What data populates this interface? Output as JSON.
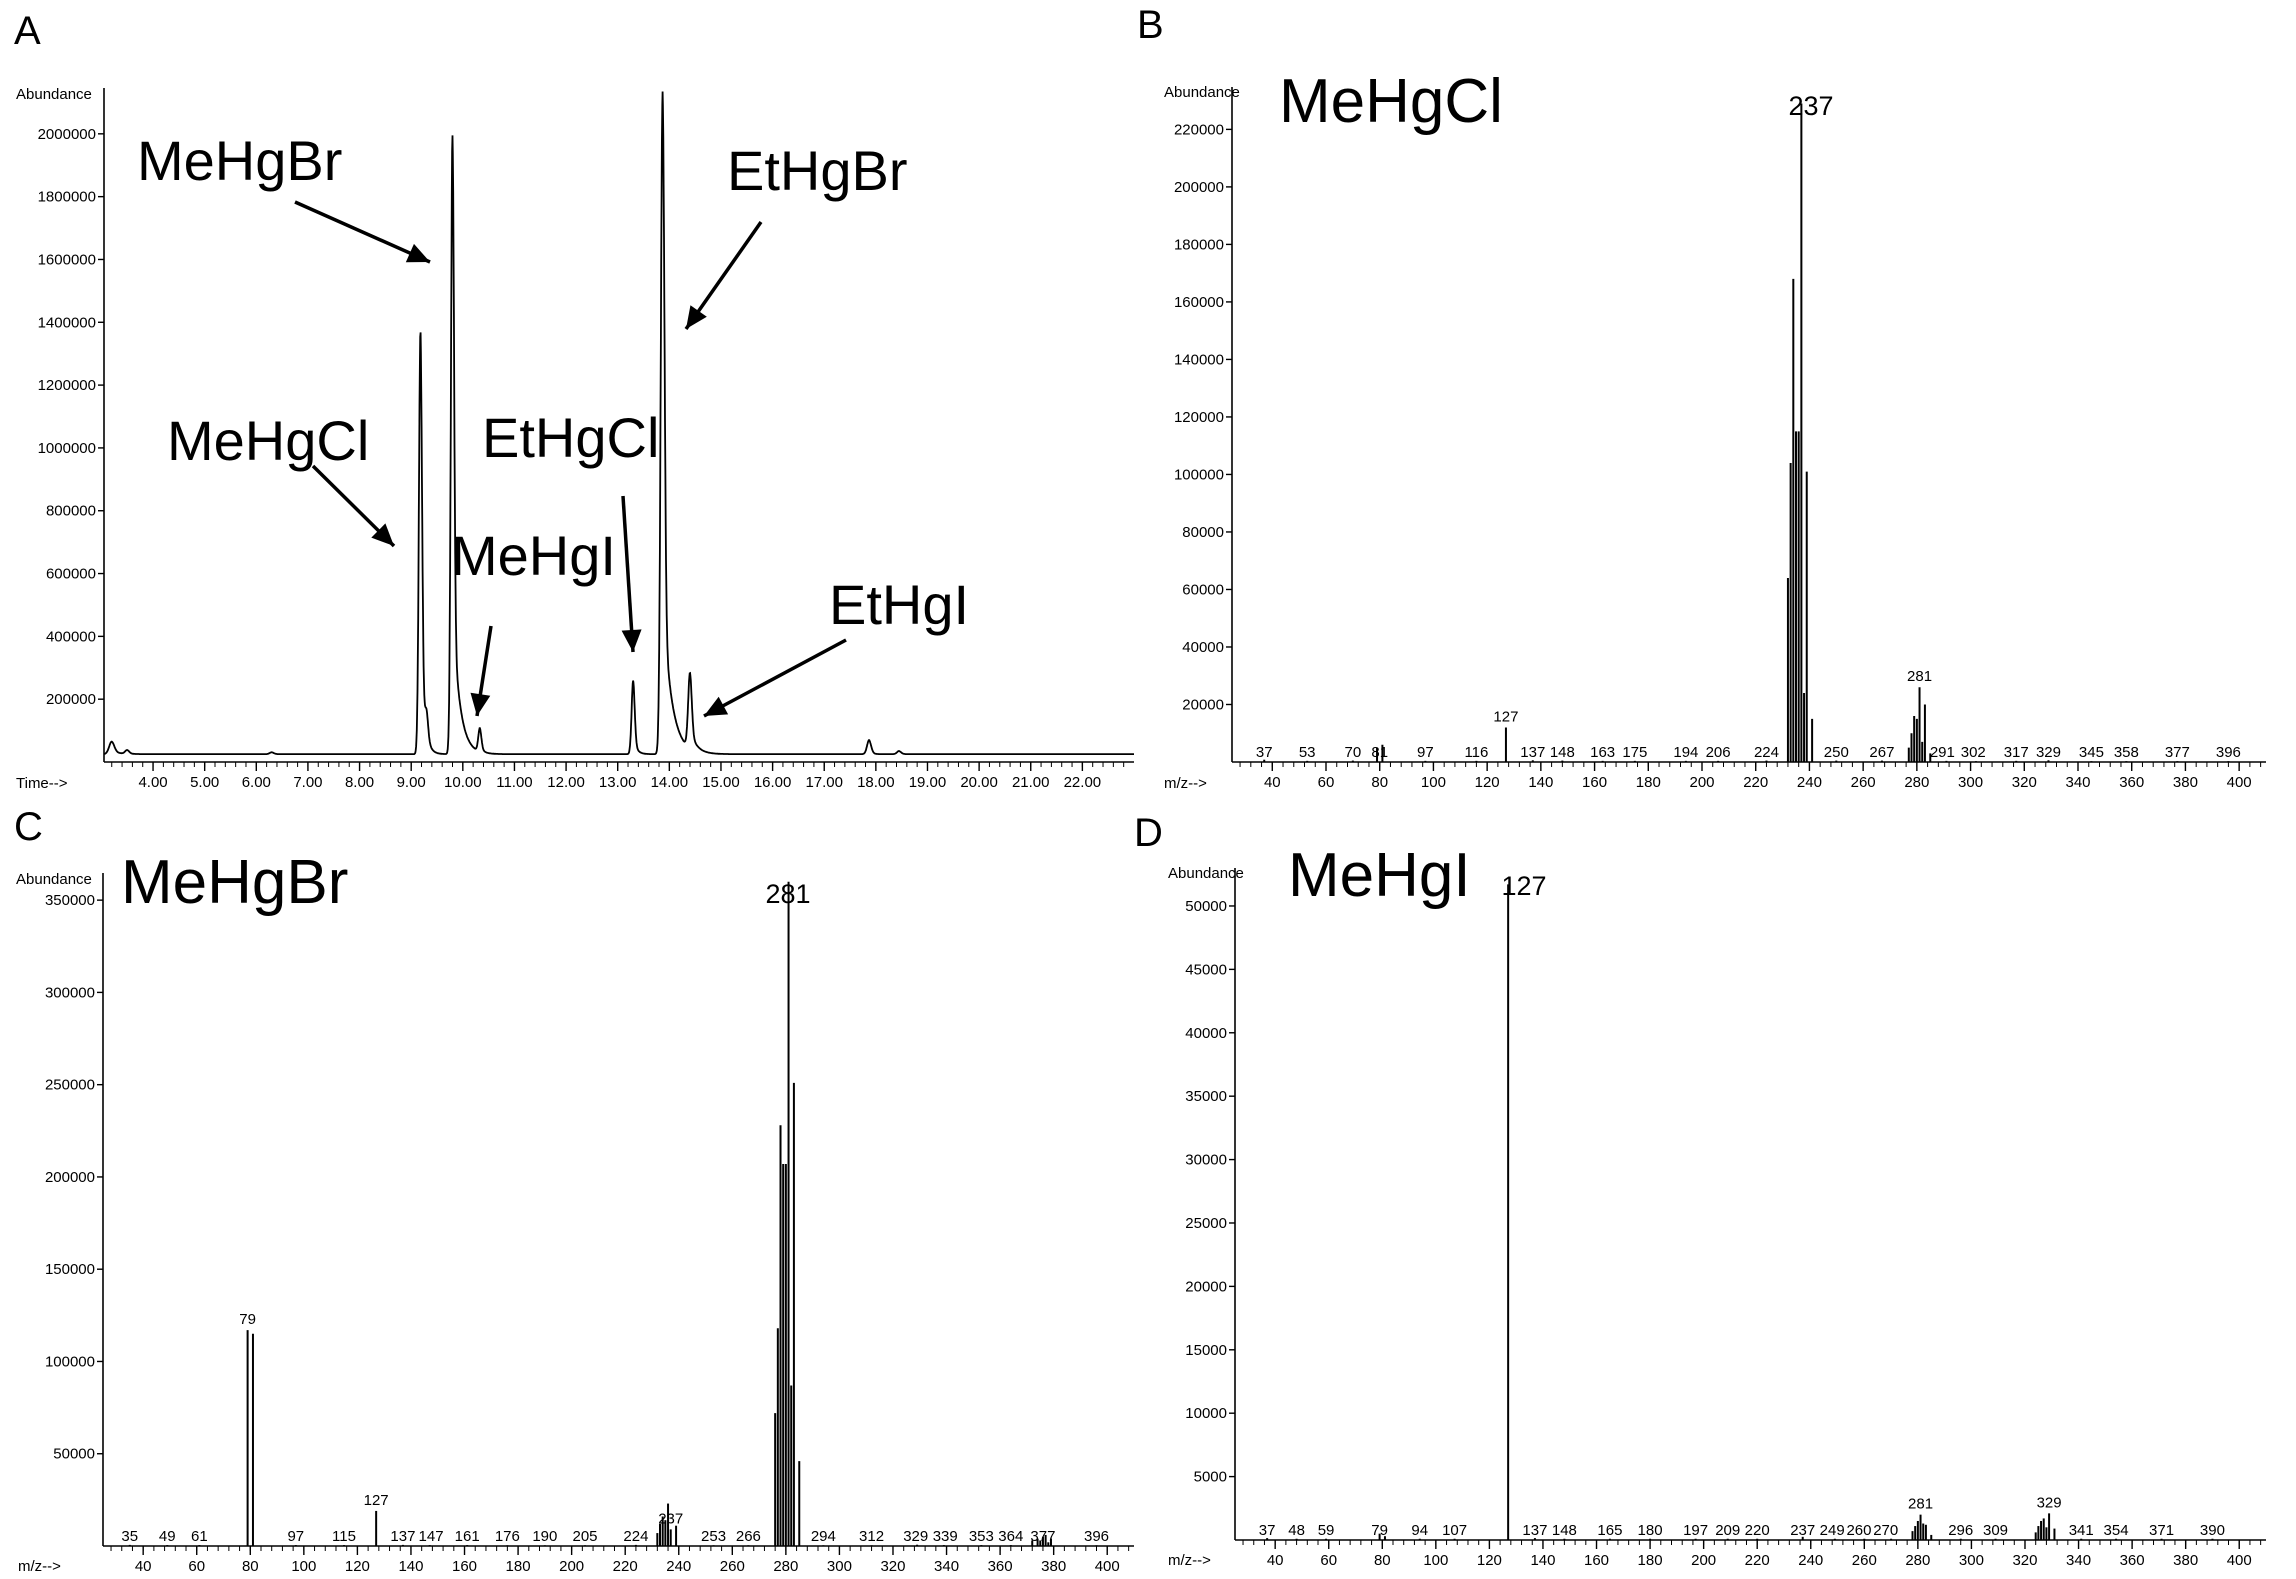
{
  "chart_data": [
    {
      "panel": "A",
      "type": "line",
      "title": "",
      "xlabel": "Time-->",
      "ylabel": "Abundance",
      "xlim": [
        3.05,
        23.0
      ],
      "ylim": [
        0,
        2130000
      ],
      "xticks": [
        4,
        5,
        6,
        7,
        8,
        9,
        10,
        11,
        12,
        13,
        14,
        15,
        16,
        17,
        18,
        19,
        20,
        21,
        22
      ],
      "xtick_labels": [
        "4.00",
        "5.00",
        "6.00",
        "7.00",
        "8.00",
        "9.00",
        "10.00",
        "11.00",
        "12.00",
        "13.00",
        "14.00",
        "15.00",
        "16.00",
        "17.00",
        "18.00",
        "19.00",
        "20.00",
        "21.00",
        "22.00"
      ],
      "yticks": [
        200000,
        400000,
        600000,
        800000,
        1000000,
        1200000,
        1400000,
        1600000,
        1800000,
        2000000
      ],
      "ytick_labels": [
        "200000",
        "400000",
        "600000",
        "800000",
        "1000000",
        "1200000",
        "1400000",
        "1600000",
        "1800000",
        "2000000"
      ],
      "baseline": 25000,
      "peaks": [
        {
          "t": 3.2,
          "h": 40000,
          "w": 0.05,
          "tail": 0.15
        },
        {
          "t": 3.5,
          "h": 12000,
          "w": 0.04,
          "tail": 0.05
        },
        {
          "t": 6.3,
          "h": 6000,
          "w": 0.04,
          "tail": 0.05
        },
        {
          "t": 9.18,
          "h": 1350000,
          "w": 0.03,
          "tail": 0.07
        },
        {
          "t": 9.3,
          "h": 80000,
          "w": 0.03,
          "tail": 0.05
        },
        {
          "t": 9.8,
          "h": 1970000,
          "w": 0.03,
          "tail": 0.13
        },
        {
          "t": 10.33,
          "h": 75000,
          "w": 0.03,
          "tail": 0.06
        },
        {
          "t": 13.3,
          "h": 235000,
          "w": 0.03,
          "tail": 0.06
        },
        {
          "t": 13.87,
          "h": 2110000,
          "w": 0.035,
          "tail": 0.16
        },
        {
          "t": 14.4,
          "h": 240000,
          "w": 0.035,
          "tail": 0.12
        },
        {
          "t": 17.87,
          "h": 45000,
          "w": 0.04,
          "tail": 0.05
        },
        {
          "t": 18.45,
          "h": 10000,
          "w": 0.04,
          "tail": 0.05
        }
      ],
      "annotations": [
        {
          "text": "MeHgBr",
          "target_t": 9.8,
          "target_y": 1620000
        },
        {
          "text": "MeHgCl",
          "target_t": 9.15,
          "target_y": 700000
        },
        {
          "text": "MeHgI",
          "target_t": 10.3,
          "target_y": 140000
        },
        {
          "text": "EtHgCl",
          "target_t": 13.25,
          "target_y": 340000
        },
        {
          "text": "EtHgBr",
          "target_t": 14.05,
          "target_y": 1400000
        },
        {
          "text": "EtHgI",
          "target_t": 14.6,
          "target_y": 130000
        }
      ]
    },
    {
      "panel": "B",
      "type": "bar",
      "title": "MeHgCl",
      "xlabel": "m/z-->",
      "ylabel": "Abundance",
      "xlim": [
        25,
        410
      ],
      "ylim": [
        0,
        233000
      ],
      "xticks": [
        40,
        60,
        80,
        100,
        120,
        140,
        160,
        180,
        200,
        220,
        240,
        260,
        280,
        300,
        320,
        340,
        360,
        380,
        400
      ],
      "yticks": [
        20000,
        40000,
        60000,
        80000,
        100000,
        120000,
        140000,
        160000,
        180000,
        200000,
        220000
      ],
      "ytick_labels": [
        "20000",
        "40000",
        "60000",
        "80000",
        "100000",
        "120000",
        "140000",
        "160000",
        "180000",
        "200000",
        "220000"
      ],
      "bars": [
        [
          37,
          800
        ],
        [
          53,
          400
        ],
        [
          70,
          500
        ],
        [
          79,
          5000
        ],
        [
          81,
          6000
        ],
        [
          97,
          400
        ],
        [
          116,
          400
        ],
        [
          127,
          12000
        ],
        [
          137,
          600
        ],
        [
          148,
          500
        ],
        [
          163,
          400
        ],
        [
          175,
          400
        ],
        [
          194,
          400
        ],
        [
          206,
          400
        ],
        [
          224,
          500
        ],
        [
          232,
          64000
        ],
        [
          233,
          104000
        ],
        [
          234,
          168000
        ],
        [
          235,
          115000
        ],
        [
          236,
          115000
        ],
        [
          237,
          229000
        ],
        [
          238,
          24000
        ],
        [
          239,
          101000
        ],
        [
          241,
          15000
        ],
        [
          250,
          500
        ],
        [
          267,
          500
        ],
        [
          277,
          5000
        ],
        [
          278,
          10000
        ],
        [
          279,
          16000
        ],
        [
          280,
          15000
        ],
        [
          281,
          26000
        ],
        [
          282,
          7000
        ],
        [
          283,
          20000
        ],
        [
          285,
          3000
        ],
        [
          291,
          400
        ],
        [
          302,
          300
        ],
        [
          317,
          400
        ],
        [
          329,
          600
        ],
        [
          345,
          300
        ],
        [
          358,
          300
        ],
        [
          377,
          300
        ],
        [
          396,
          300
        ]
      ],
      "peak_labels": [
        {
          "text": "37",
          "mz": 37
        },
        {
          "text": "53",
          "mz": 53
        },
        {
          "text": "70",
          "mz": 70
        },
        {
          "text": "81",
          "mz": 80
        },
        {
          "text": "97",
          "mz": 97
        },
        {
          "text": "116",
          "mz": 116
        },
        {
          "text": "127",
          "mz": 127
        },
        {
          "text": "137",
          "mz": 137
        },
        {
          "text": "148",
          "mz": 148
        },
        {
          "text": "163",
          "mz": 163
        },
        {
          "text": "175",
          "mz": 175
        },
        {
          "text": "194",
          "mz": 194
        },
        {
          "text": "206",
          "mz": 206
        },
        {
          "text": "224",
          "mz": 224
        },
        {
          "text": "250",
          "mz": 250
        },
        {
          "text": "267",
          "mz": 267
        },
        {
          "text": "281",
          "mz": 281
        },
        {
          "text": "291",
          "mz": 289.5
        },
        {
          "text": "302",
          "mz": 301
        },
        {
          "text": "317",
          "mz": 317
        },
        {
          "text": "329",
          "mz": 329
        },
        {
          "text": "345",
          "mz": 345
        },
        {
          "text": "358",
          "mz": 358
        },
        {
          "text": "377",
          "mz": 377
        },
        {
          "text": "396",
          "mz": 396
        }
      ],
      "major_peak_label": "237"
    },
    {
      "panel": "C",
      "type": "bar",
      "title": "MeHgBr",
      "xlabel": "m/z-->",
      "ylabel": "Abundance",
      "xlim": [
        25,
        410
      ],
      "ylim": [
        0,
        362000
      ],
      "xticks": [
        40,
        60,
        80,
        100,
        120,
        140,
        160,
        180,
        200,
        220,
        240,
        260,
        280,
        300,
        320,
        340,
        360,
        380,
        400
      ],
      "yticks": [
        50000,
        100000,
        150000,
        200000,
        250000,
        300000,
        350000
      ],
      "ytick_labels": [
        "50000",
        "100000",
        "150000",
        "200000",
        "250000",
        "300000",
        "350000"
      ],
      "bars": [
        [
          35,
          600
        ],
        [
          49,
          500
        ],
        [
          61,
          500
        ],
        [
          79,
          117000
        ],
        [
          81,
          115000
        ],
        [
          97,
          500
        ],
        [
          115,
          500
        ],
        [
          127,
          19000
        ],
        [
          137,
          600
        ],
        [
          147,
          500
        ],
        [
          161,
          500
        ],
        [
          176,
          400
        ],
        [
          190,
          400
        ],
        [
          205,
          400
        ],
        [
          224,
          600
        ],
        [
          232,
          7000
        ],
        [
          233,
          12000
        ],
        [
          234,
          16000
        ],
        [
          235,
          14000
        ],
        [
          236,
          23000
        ],
        [
          237,
          9000
        ],
        [
          239,
          11000
        ],
        [
          253,
          400
        ],
        [
          266,
          400
        ],
        [
          276,
          72000
        ],
        [
          277,
          118000
        ],
        [
          278,
          228000
        ],
        [
          279,
          207000
        ],
        [
          280,
          207000
        ],
        [
          281,
          360000
        ],
        [
          282,
          87000
        ],
        [
          283,
          251000
        ],
        [
          285,
          46000
        ],
        [
          294,
          400
        ],
        [
          312,
          400
        ],
        [
          329,
          700
        ],
        [
          339,
          500
        ],
        [
          353,
          500
        ],
        [
          364,
          500
        ],
        [
          372,
          3000
        ],
        [
          374,
          4000
        ],
        [
          375,
          3000
        ],
        [
          376,
          5000
        ],
        [
          377,
          6000
        ],
        [
          378,
          2000
        ],
        [
          379,
          4000
        ],
        [
          396,
          400
        ]
      ],
      "peak_labels": [
        {
          "text": "35",
          "mz": 35
        },
        {
          "text": "49",
          "mz": 49
        },
        {
          "text": "61",
          "mz": 61
        },
        {
          "text": "79",
          "mz": 79
        },
        {
          "text": "97",
          "mz": 97
        },
        {
          "text": "115",
          "mz": 115
        },
        {
          "text": "127",
          "mz": 127
        },
        {
          "text": "137",
          "mz": 137
        },
        {
          "text": "147",
          "mz": 147.5
        },
        {
          "text": "161",
          "mz": 161
        },
        {
          "text": "176",
          "mz": 176
        },
        {
          "text": "190",
          "mz": 190
        },
        {
          "text": "205",
          "mz": 205
        },
        {
          "text": "224",
          "mz": 224
        },
        {
          "text": "237",
          "mz": 237
        },
        {
          "text": "253",
          "mz": 253
        },
        {
          "text": "266",
          "mz": 266
        },
        {
          "text": "294",
          "mz": 294
        },
        {
          "text": "312",
          "mz": 312
        },
        {
          "text": "329",
          "mz": 328.5
        },
        {
          "text": "339",
          "mz": 339.5
        },
        {
          "text": "353",
          "mz": 353
        },
        {
          "text": "364",
          "mz": 364
        },
        {
          "text": "377",
          "mz": 376
        },
        {
          "text": "396",
          "mz": 396
        }
      ],
      "major_peak_label": "281"
    },
    {
      "panel": "D",
      "type": "bar",
      "title": "MeHgI",
      "xlabel": "m/z-->",
      "ylabel": "Abundance",
      "xlim": [
        25,
        410
      ],
      "ylim": [
        0,
        52600
      ],
      "xticks": [
        40,
        60,
        80,
        100,
        120,
        140,
        160,
        180,
        200,
        220,
        240,
        260,
        280,
        300,
        320,
        340,
        360,
        380,
        400
      ],
      "yticks": [
        5000,
        10000,
        15000,
        20000,
        25000,
        30000,
        35000,
        40000,
        45000,
        50000
      ],
      "ytick_labels": [
        "5000",
        "10000",
        "15000",
        "20000",
        "25000",
        "30000",
        "35000",
        "40000",
        "45000",
        "50000"
      ],
      "bars": [
        [
          37,
          150
        ],
        [
          48,
          100
        ],
        [
          59,
          100
        ],
        [
          79,
          500
        ],
        [
          81,
          300
        ],
        [
          94,
          100
        ],
        [
          107,
          100
        ],
        [
          127,
          51700
        ],
        [
          137,
          150
        ],
        [
          148,
          100
        ],
        [
          165,
          100
        ],
        [
          180,
          100
        ],
        [
          197,
          100
        ],
        [
          209,
          100
        ],
        [
          220,
          100
        ],
        [
          237,
          250
        ],
        [
          249,
          100
        ],
        [
          260,
          100
        ],
        [
          270,
          100
        ],
        [
          278,
          700
        ],
        [
          279,
          1100
        ],
        [
          280,
          1500
        ],
        [
          281,
          2000
        ],
        [
          282,
          1300
        ],
        [
          283,
          1200
        ],
        [
          285,
          400
        ],
        [
          296,
          100
        ],
        [
          309,
          100
        ],
        [
          324,
          600
        ],
        [
          325,
          1100
        ],
        [
          326,
          1500
        ],
        [
          327,
          1700
        ],
        [
          328,
          1000
        ],
        [
          329,
          2100
        ],
        [
          331,
          900
        ],
        [
          341,
          100
        ],
        [
          354,
          100
        ],
        [
          371,
          100
        ],
        [
          390,
          100
        ]
      ],
      "peak_labels": [
        {
          "text": "37",
          "mz": 37
        },
        {
          "text": "48",
          "mz": 48
        },
        {
          "text": "59",
          "mz": 59
        },
        {
          "text": "79",
          "mz": 79
        },
        {
          "text": "94",
          "mz": 94
        },
        {
          "text": "107",
          "mz": 107
        },
        {
          "text": "137",
          "mz": 137
        },
        {
          "text": "148",
          "mz": 148
        },
        {
          "text": "165",
          "mz": 165
        },
        {
          "text": "180",
          "mz": 180
        },
        {
          "text": "197",
          "mz": 197
        },
        {
          "text": "209",
          "mz": 209
        },
        {
          "text": "220",
          "mz": 220
        },
        {
          "text": "237",
          "mz": 237
        },
        {
          "text": "249",
          "mz": 248
        },
        {
          "text": "260",
          "mz": 258
        },
        {
          "text": "270",
          "mz": 268
        },
        {
          "text": "281",
          "mz": 281
        },
        {
          "text": "296",
          "mz": 296
        },
        {
          "text": "309",
          "mz": 309
        },
        {
          "text": "329",
          "mz": 329
        },
        {
          "text": "341",
          "mz": 341
        },
        {
          "text": "354",
          "mz": 354
        },
        {
          "text": "371",
          "mz": 371
        },
        {
          "text": "390",
          "mz": 390
        }
      ],
      "major_peak_label": "127"
    }
  ]
}
